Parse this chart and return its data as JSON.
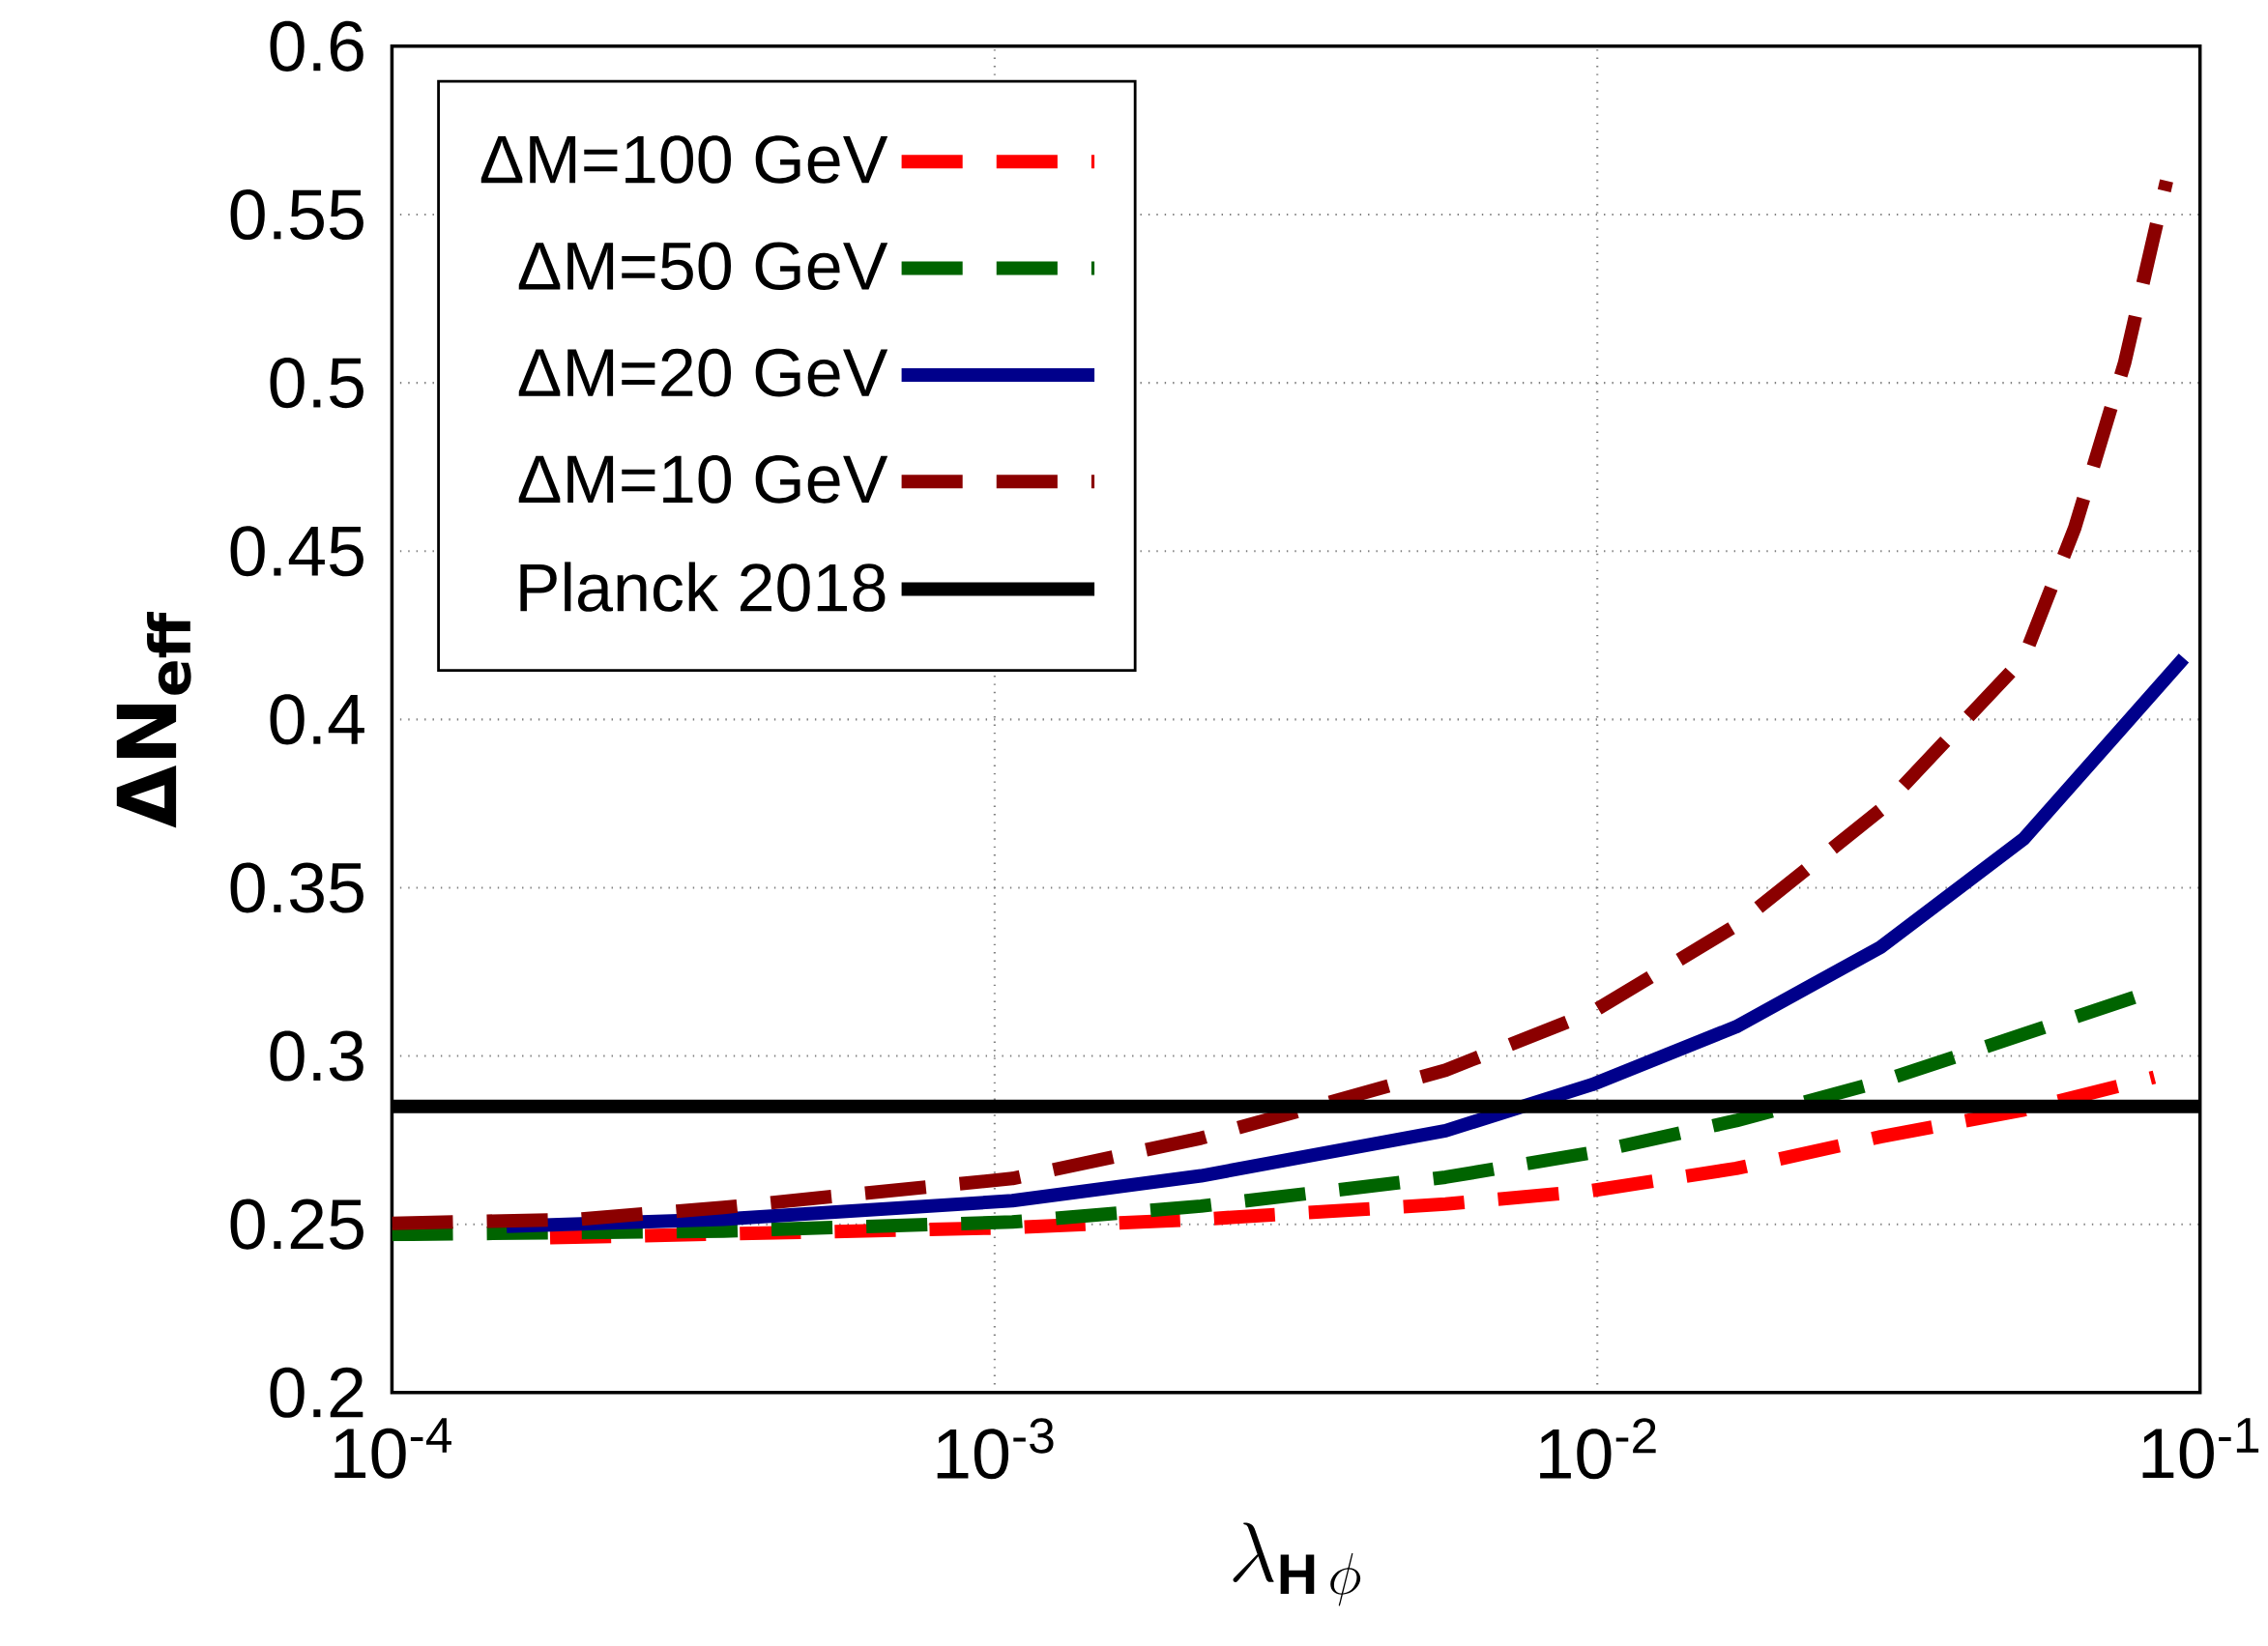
{
  "chart_data": {
    "type": "line",
    "xlabel": "\\lambda_{\\mathbf{H}\\,\\phi}",
    "ylabel": "ΔN$_{eff}$",
    "log": "x",
    "grid": true,
    "legend": "top left",
    "xlim": [
      0.0001,
      0.1
    ],
    "ylim": [
      0.2,
      0.6
    ],
    "xticks": [
      {
        "value": 0.0001,
        "label": "10$^{-4}$"
      },
      {
        "value": 0.001,
        "label": "10$^{-3}$"
      },
      {
        "value": 0.01,
        "label": "10$^{-2}$"
      },
      {
        "value": 0.1,
        "label": "10$^{-1}$"
      }
    ],
    "yticks": [
      0.2,
      0.25,
      0.3,
      0.35,
      0.4,
      0.45,
      0.5,
      0.55,
      0.6
    ],
    "series": [
      {
        "name": "ΔM=100 GeV",
        "color": "#ff0000",
        "line_style": "dashed",
        "x": [
          0.000183,
          0.00107,
          0.0022,
          0.0056,
          0.0098,
          0.017,
          0.0295,
          0.051,
          0.084
        ],
        "values": [
          0.246,
          0.249,
          0.2515,
          0.256,
          0.26,
          0.2666,
          0.276,
          0.284,
          0.2937
        ]
      },
      {
        "name": "ΔM=50 GeV",
        "color": "#006400",
        "line_style": "dashed",
        "x": [
          0.0001,
          0.000355,
          0.00107,
          0.0022,
          0.0056,
          0.0098,
          0.017,
          0.0295,
          0.051,
          0.0796
        ],
        "values": [
          0.247,
          0.248,
          0.2507,
          0.2554,
          0.264,
          0.2713,
          0.2808,
          0.2924,
          0.3065,
          0.318
        ]
      },
      {
        "name": "ΔM=20 GeV",
        "color": "#00008b",
        "line_style": "solid",
        "x": [
          0.000155,
          0.000355,
          0.00107,
          0.0022,
          0.0056,
          0.0098,
          0.017,
          0.0295,
          0.051,
          0.094
        ],
        "values": [
          0.2494,
          0.2515,
          0.257,
          0.2644,
          0.2778,
          0.2915,
          0.3087,
          0.3323,
          0.3645,
          0.4182
        ]
      },
      {
        "name": "ΔM=10 GeV",
        "color": "#8b0000",
        "line_style": "dashed",
        "x": [
          0.0001,
          0.000204,
          0.000355,
          0.00107,
          0.0022,
          0.0056,
          0.0098,
          0.017,
          0.0295,
          0.051,
          0.062,
          0.075,
          0.088
        ],
        "values": [
          0.2503,
          0.2515,
          0.255,
          0.2636,
          0.2756,
          0.2958,
          0.313,
          0.3388,
          0.3731,
          0.4182,
          0.457,
          0.506,
          0.56
        ]
      },
      {
        "name": "Planck 2018",
        "color": "#000000",
        "line_style": "solid",
        "x": [
          0.0001,
          0.1
        ],
        "values": [
          0.285,
          0.285
        ]
      }
    ]
  }
}
